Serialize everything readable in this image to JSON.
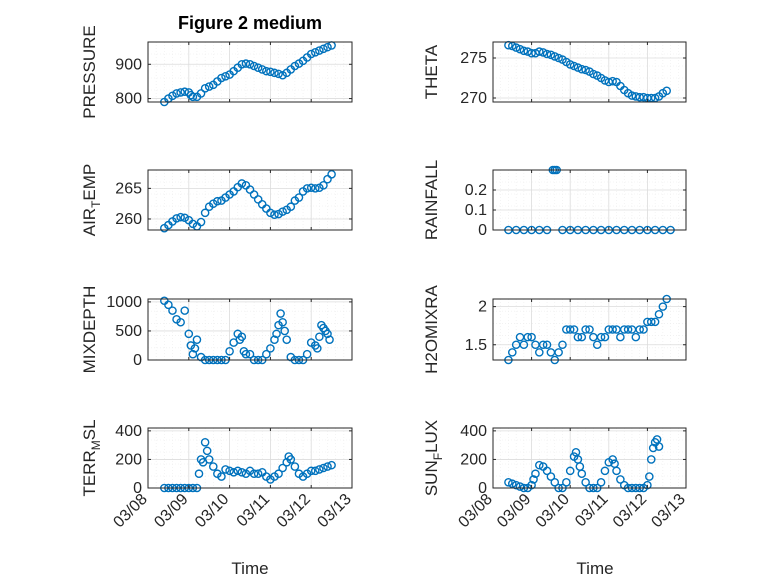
{
  "figure": {
    "title": "Figure 2 medium",
    "xlabel": "Time",
    "marker_color": "#0072BD",
    "x_ticks": [
      "03/08",
      "03/09",
      "03/10",
      "03/11",
      "03/12",
      "03/13"
    ]
  },
  "chart_data": [
    {
      "type": "scatter",
      "ylabel": "PRESSURE",
      "title": "Figure 2 medium",
      "xlim": [
        8.0,
        13.0
      ],
      "ylim": [
        790,
        965
      ],
      "yticks": [
        800,
        900
      ],
      "grid": true,
      "series": [
        {
          "x": [
            8.4,
            8.5,
            8.6,
            8.7,
            8.8,
            8.9,
            9.0,
            9.05,
            9.1,
            9.2,
            9.3,
            9.4,
            9.5,
            9.6,
            9.7,
            9.8,
            9.9,
            10.0,
            10.1,
            10.2,
            10.3,
            10.4,
            10.5,
            10.6,
            10.7,
            10.8,
            10.9,
            11.0,
            11.1,
            11.2,
            11.3,
            11.4,
            11.5,
            11.6,
            11.7,
            11.8,
            11.9,
            12.0,
            12.1,
            12.2,
            12.3,
            12.4,
            12.5
          ],
          "y": [
            790,
            800,
            808,
            815,
            818,
            820,
            818,
            810,
            805,
            805,
            815,
            830,
            835,
            840,
            850,
            860,
            865,
            870,
            880,
            890,
            900,
            902,
            900,
            895,
            890,
            885,
            880,
            878,
            875,
            872,
            868,
            875,
            885,
            895,
            902,
            910,
            920,
            930,
            935,
            940,
            945,
            950,
            955
          ]
        }
      ]
    },
    {
      "type": "scatter",
      "ylabel": "THETA",
      "xlim": [
        8.0,
        13.0
      ],
      "ylim": [
        269.5,
        277.0
      ],
      "yticks": [
        270,
        275
      ],
      "grid": true,
      "series": [
        {
          "x": [
            8.4,
            8.5,
            8.6,
            8.7,
            8.8,
            8.9,
            9.0,
            9.1,
            9.2,
            9.3,
            9.4,
            9.5,
            9.6,
            9.7,
            9.8,
            9.9,
            10.0,
            10.1,
            10.2,
            10.3,
            10.4,
            10.5,
            10.6,
            10.7,
            10.8,
            10.9,
            11.0,
            11.1,
            11.2,
            11.3,
            11.4,
            11.5,
            11.6,
            11.7,
            11.8,
            11.9,
            12.0,
            12.1,
            12.2,
            12.3,
            12.4,
            12.5
          ],
          "y": [
            276.6,
            276.5,
            276.3,
            276.1,
            275.9,
            275.8,
            275.6,
            275.6,
            275.8,
            275.7,
            275.5,
            275.4,
            275.2,
            275.0,
            274.8,
            274.5,
            274.2,
            274.0,
            273.8,
            273.6,
            273.5,
            273.3,
            273.0,
            272.8,
            272.5,
            272.2,
            272.0,
            272.1,
            272.0,
            271.5,
            271.0,
            270.6,
            270.3,
            270.2,
            270.1,
            270.1,
            270.0,
            270.0,
            270.0,
            270.2,
            270.6,
            270.9
          ]
        }
      ]
    },
    {
      "type": "scatter",
      "ylabel": "AIR_TEMP",
      "xlim": [
        8.0,
        13.0
      ],
      "ylim": [
        258.2,
        268.0
      ],
      "yticks": [
        260,
        265
      ],
      "grid": true,
      "series": [
        {
          "x": [
            8.4,
            8.5,
            8.6,
            8.7,
            8.8,
            8.9,
            9.0,
            9.1,
            9.2,
            9.3,
            9.4,
            9.5,
            9.6,
            9.7,
            9.8,
            9.9,
            10.0,
            10.1,
            10.2,
            10.3,
            10.4,
            10.5,
            10.6,
            10.7,
            10.8,
            10.9,
            11.0,
            11.1,
            11.2,
            11.3,
            11.4,
            11.5,
            11.6,
            11.7,
            11.8,
            11.9,
            12.0,
            12.1,
            12.2,
            12.3,
            12.4,
            12.5
          ],
          "y": [
            258.5,
            259.0,
            259.6,
            260.1,
            260.3,
            260.2,
            259.8,
            259.2,
            258.8,
            259.5,
            261.0,
            262.0,
            262.5,
            262.9,
            263.0,
            263.5,
            264.0,
            264.5,
            265.2,
            265.8,
            265.5,
            264.8,
            264.0,
            263.2,
            262.4,
            261.7,
            261.0,
            260.7,
            260.8,
            261.2,
            261.5,
            262.0,
            263.0,
            263.5,
            264.5,
            265.0,
            265.1,
            265.0,
            265.1,
            265.5,
            266.5,
            267.3
          ]
        }
      ]
    },
    {
      "type": "scatter",
      "ylabel": "RAINFALL",
      "xlim": [
        8.0,
        13.0
      ],
      "ylim": [
        0,
        0.3
      ],
      "yticks": [
        0,
        0.1,
        0.2
      ],
      "grid": true,
      "series": [
        {
          "x": [
            8.4,
            8.6,
            8.8,
            9.0,
            9.2,
            9.4,
            9.55,
            9.6,
            9.65,
            9.8,
            10.0,
            10.2,
            10.4,
            10.6,
            10.8,
            11.0,
            11.2,
            11.4,
            11.6,
            11.8,
            12.0,
            12.2,
            12.4,
            12.6
          ],
          "y": [
            0,
            0,
            0,
            0,
            0,
            0,
            0.3,
            0.3,
            0.3,
            0,
            0,
            0,
            0,
            0,
            0,
            0,
            0,
            0,
            0,
            0,
            0,
            0,
            0,
            0
          ]
        }
      ]
    },
    {
      "type": "scatter",
      "ylabel": "MIXDEPTH",
      "xlim": [
        8.0,
        13.0
      ],
      "ylim": [
        0,
        1050
      ],
      "yticks": [
        0,
        500,
        1000
      ],
      "grid": true,
      "series": [
        {
          "x": [
            8.4,
            8.5,
            8.6,
            8.7,
            8.8,
            8.9,
            9.0,
            9.05,
            9.1,
            9.15,
            9.2,
            9.3,
            9.4,
            9.5,
            9.6,
            9.7,
            9.8,
            9.9,
            10.0,
            10.1,
            10.2,
            10.25,
            10.3,
            10.35,
            10.4,
            10.5,
            10.6,
            10.7,
            10.8,
            10.9,
            11.0,
            11.1,
            11.15,
            11.2,
            11.25,
            11.3,
            11.35,
            11.4,
            11.5,
            11.6,
            11.7,
            11.8,
            11.9,
            12.0,
            12.1,
            12.15,
            12.2,
            12.25,
            12.3,
            12.35,
            12.4,
            12.45
          ],
          "y": [
            1020,
            950,
            850,
            700,
            650,
            850,
            450,
            250,
            100,
            200,
            350,
            50,
            0,
            0,
            0,
            0,
            0,
            0,
            150,
            300,
            450,
            350,
            400,
            150,
            100,
            100,
            0,
            0,
            0,
            100,
            200,
            350,
            450,
            600,
            800,
            650,
            500,
            350,
            50,
            0,
            0,
            0,
            100,
            300,
            250,
            200,
            400,
            600,
            550,
            500,
            450,
            350
          ]
        }
      ]
    },
    {
      "type": "scatter",
      "ylabel": "H2OMIXRA",
      "xlim": [
        8.0,
        13.0
      ],
      "ylim": [
        1.3,
        2.1
      ],
      "yticks": [
        1.5,
        2
      ],
      "grid": true,
      "series": [
        {
          "x": [
            8.4,
            8.5,
            8.6,
            8.7,
            8.8,
            8.9,
            9.0,
            9.1,
            9.2,
            9.3,
            9.4,
            9.5,
            9.6,
            9.7,
            9.8,
            9.9,
            10.0,
            10.1,
            10.2,
            10.3,
            10.4,
            10.5,
            10.6,
            10.7,
            10.8,
            10.9,
            11.0,
            11.1,
            11.2,
            11.3,
            11.4,
            11.5,
            11.6,
            11.7,
            11.8,
            11.9,
            12.0,
            12.1,
            12.2,
            12.3,
            12.4,
            12.5
          ],
          "y": [
            1.3,
            1.4,
            1.5,
            1.6,
            1.5,
            1.6,
            1.6,
            1.5,
            1.4,
            1.5,
            1.5,
            1.4,
            1.3,
            1.4,
            1.5,
            1.7,
            1.7,
            1.7,
            1.6,
            1.6,
            1.7,
            1.7,
            1.6,
            1.5,
            1.6,
            1.6,
            1.7,
            1.7,
            1.7,
            1.6,
            1.7,
            1.7,
            1.7,
            1.6,
            1.7,
            1.7,
            1.8,
            1.8,
            1.8,
            1.9,
            2.0,
            2.1
          ]
        }
      ]
    },
    {
      "type": "scatter",
      "ylabel": "TERR_MSL",
      "xlim": [
        8.0,
        13.0
      ],
      "ylim": [
        0,
        420
      ],
      "yticks": [
        0,
        200,
        400
      ],
      "grid": true,
      "series": [
        {
          "x": [
            8.4,
            8.5,
            8.6,
            8.7,
            8.8,
            8.9,
            9.0,
            9.1,
            9.2,
            9.25,
            9.3,
            9.35,
            9.4,
            9.45,
            9.5,
            9.6,
            9.7,
            9.8,
            9.9,
            10.0,
            10.1,
            10.2,
            10.3,
            10.4,
            10.5,
            10.6,
            10.7,
            10.8,
            10.9,
            11.0,
            11.1,
            11.2,
            11.3,
            11.4,
            11.45,
            11.5,
            11.6,
            11.7,
            11.8,
            11.9,
            12.0,
            12.1,
            12.2,
            12.3,
            12.4,
            12.5
          ],
          "y": [
            0,
            0,
            0,
            0,
            0,
            0,
            0,
            0,
            0,
            100,
            200,
            180,
            320,
            260,
            200,
            150,
            100,
            80,
            130,
            120,
            110,
            120,
            110,
            100,
            120,
            100,
            100,
            110,
            80,
            60,
            80,
            100,
            140,
            180,
            220,
            200,
            150,
            100,
            80,
            100,
            120,
            120,
            130,
            140,
            150,
            160
          ]
        }
      ]
    },
    {
      "type": "scatter",
      "ylabel": "SUN_FLUX",
      "xlim": [
        8.0,
        13.0
      ],
      "ylim": [
        0,
        420
      ],
      "yticks": [
        0,
        200,
        400
      ],
      "grid": true,
      "series": [
        {
          "x": [
            8.4,
            8.5,
            8.6,
            8.7,
            8.8,
            8.9,
            9.0,
            9.05,
            9.1,
            9.2,
            9.3,
            9.4,
            9.5,
            9.6,
            9.7,
            9.8,
            9.9,
            10.0,
            10.1,
            10.15,
            10.2,
            10.25,
            10.3,
            10.4,
            10.5,
            10.6,
            10.7,
            10.8,
            10.9,
            11.0,
            11.1,
            11.15,
            11.2,
            11.3,
            11.4,
            11.5,
            11.6,
            11.7,
            11.8,
            11.9,
            12.0,
            12.05,
            12.1,
            12.15,
            12.2,
            12.25,
            12.3
          ],
          "y": [
            40,
            30,
            20,
            10,
            0,
            0,
            20,
            60,
            100,
            160,
            150,
            120,
            80,
            40,
            0,
            0,
            40,
            120,
            220,
            250,
            200,
            150,
            100,
            40,
            0,
            0,
            0,
            40,
            120,
            180,
            200,
            170,
            120,
            60,
            20,
            0,
            0,
            0,
            0,
            0,
            20,
            80,
            200,
            280,
            320,
            340,
            290
          ]
        }
      ]
    }
  ]
}
